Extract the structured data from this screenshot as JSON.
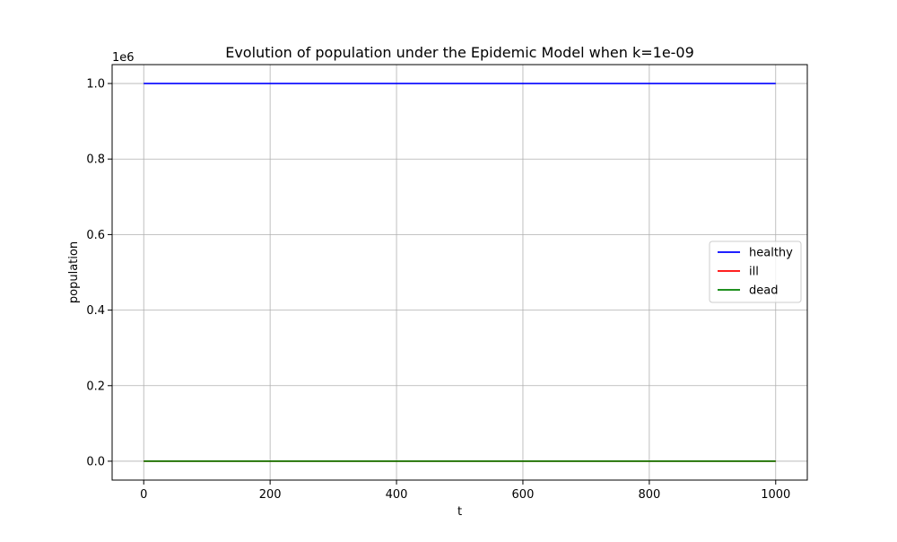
{
  "chart_data": {
    "type": "line",
    "title": "Evolution of population under the Epidemic Model when k=1e-09",
    "xlabel": "t",
    "ylabel": "population",
    "y_offset_label": "1e6",
    "xlim": [
      -50,
      1050
    ],
    "ylim": [
      -0.05,
      1.05
    ],
    "x_ticks": [
      0,
      200,
      400,
      600,
      800,
      1000
    ],
    "x_tick_labels": [
      "0",
      "200",
      "400",
      "600",
      "800",
      "1000"
    ],
    "y_ticks": [
      0.0,
      0.2,
      0.4,
      0.6,
      0.8,
      1.0
    ],
    "y_tick_labels": [
      "0.0",
      "0.2",
      "0.4",
      "0.6",
      "0.8",
      "1.0"
    ],
    "grid": true,
    "legend_position": "center-right",
    "x": [
      0,
      1000
    ],
    "series": [
      {
        "name": "healthy",
        "color": "#0000ff",
        "values": [
          1.0,
          1.0
        ]
      },
      {
        "name": "ill",
        "color": "#ff0000",
        "values": [
          0.0,
          0.0
        ]
      },
      {
        "name": "dead",
        "color": "#008000",
        "values": [
          0.0,
          0.0
        ]
      }
    ]
  }
}
